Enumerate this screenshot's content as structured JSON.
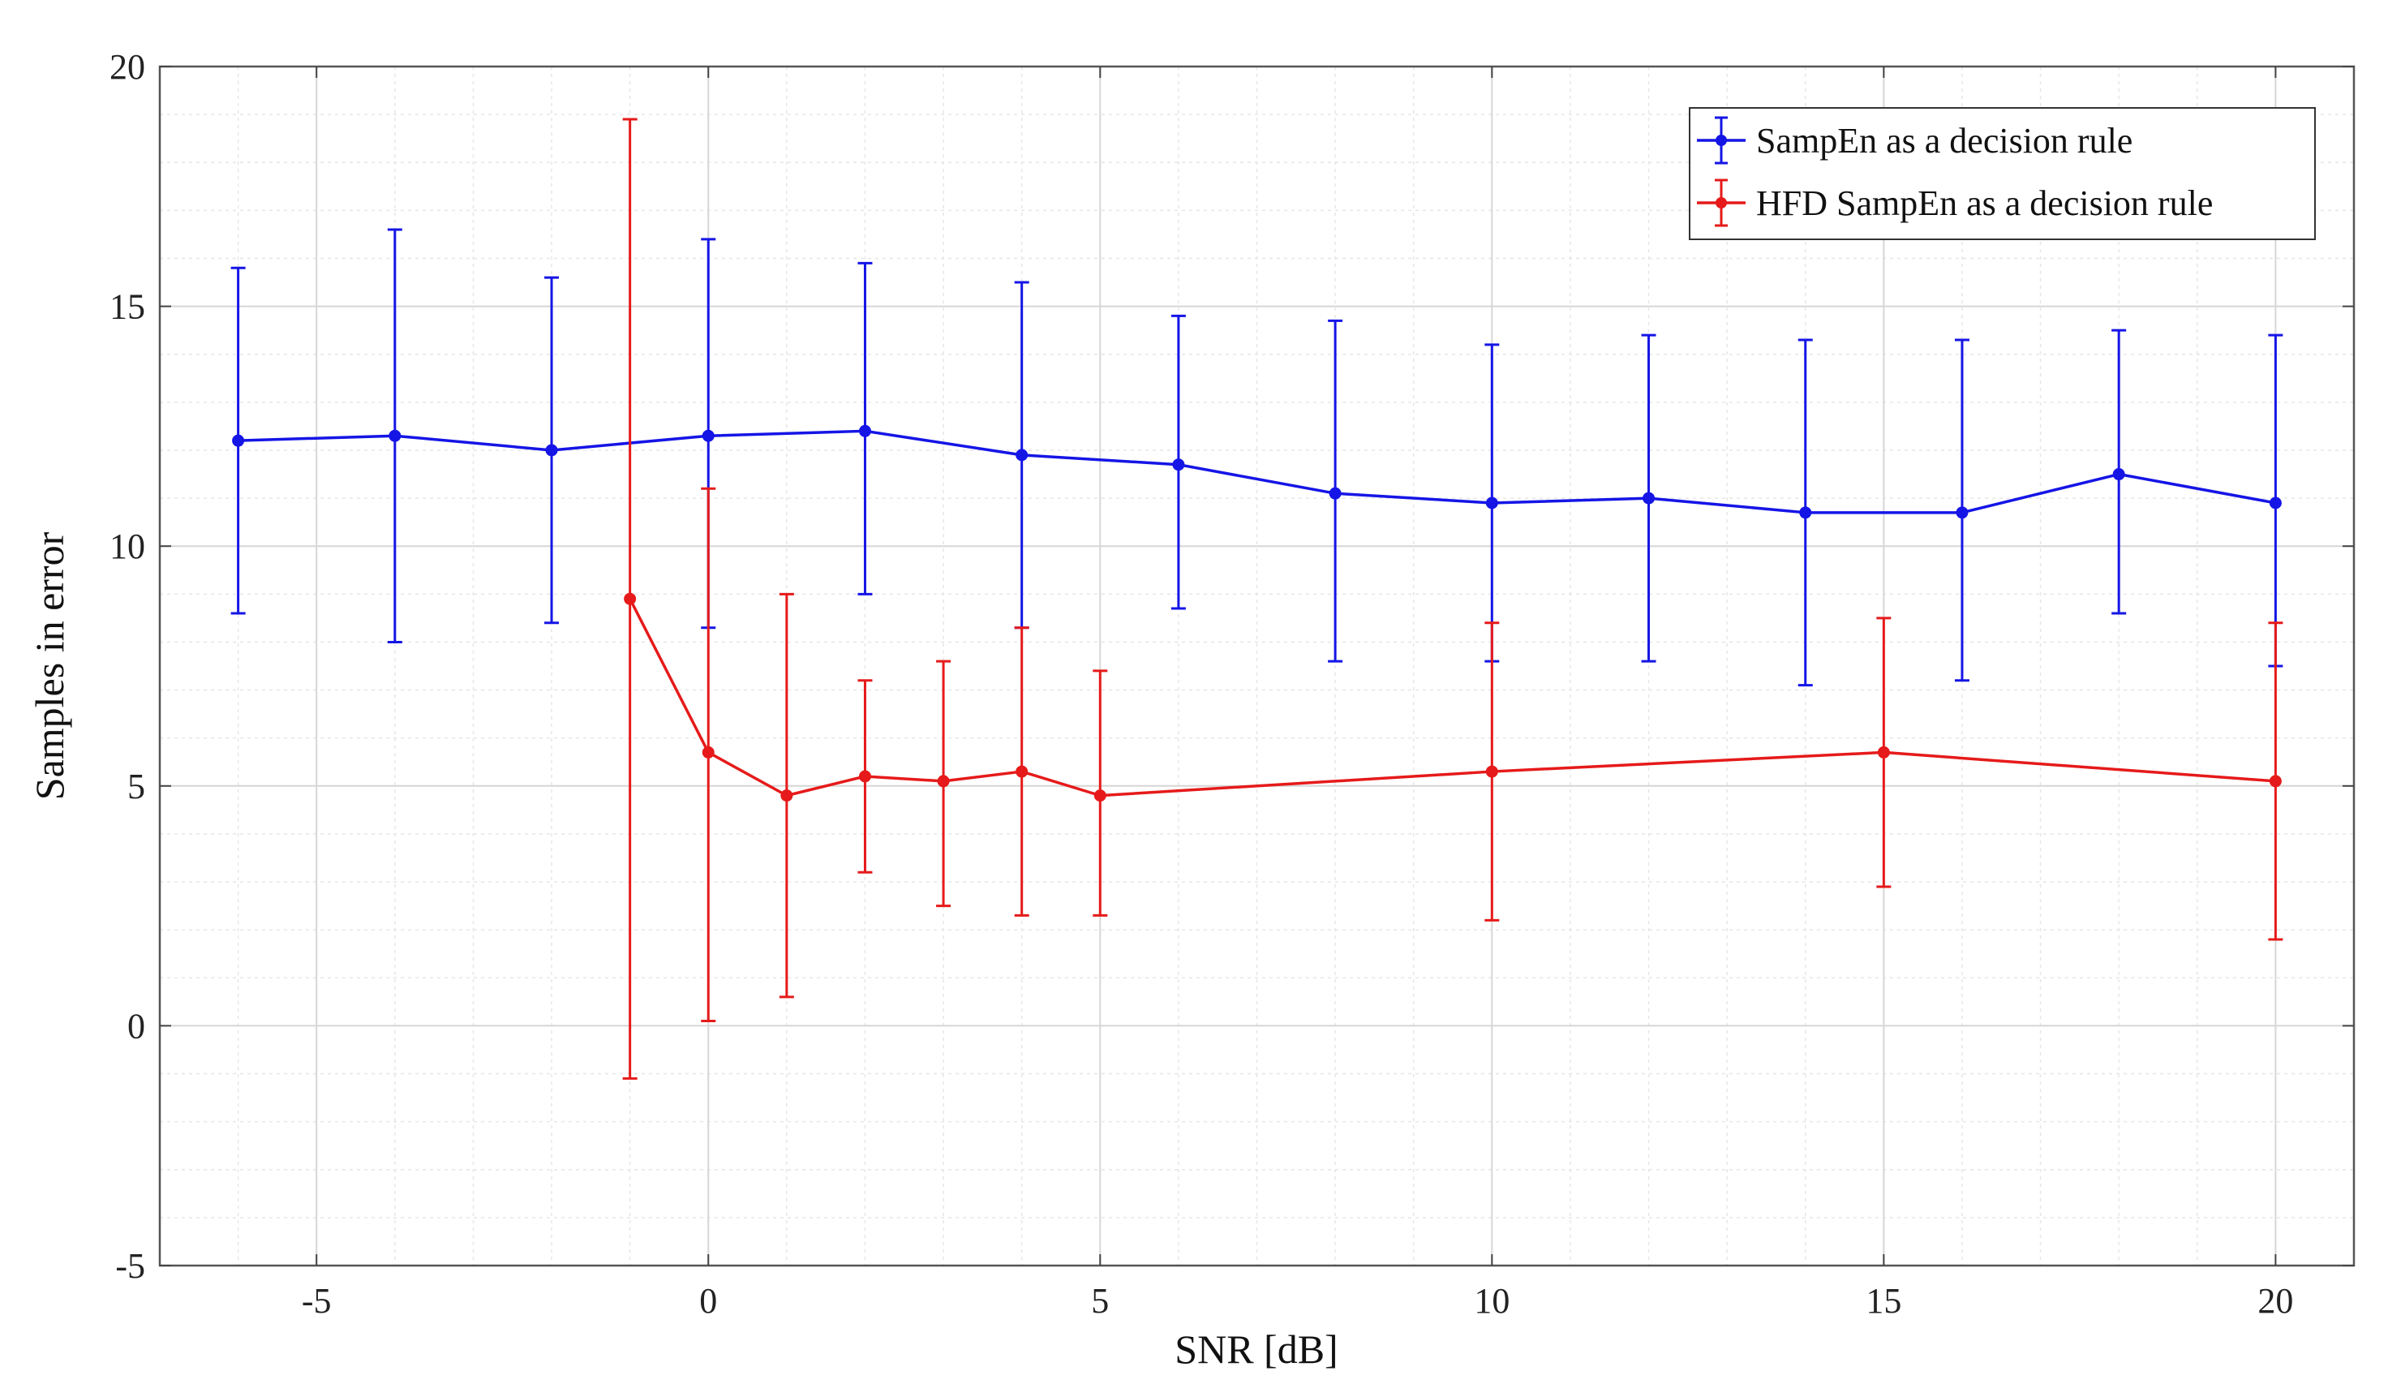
{
  "chart_data": {
    "type": "line",
    "subtype": "errorbar",
    "title": "",
    "xlabel": "SNR [dB]",
    "ylabel": "Samples in error",
    "xlim": [
      -7,
      21
    ],
    "ylim": [
      -5,
      20
    ],
    "xticks": [
      -5,
      0,
      5,
      10,
      15,
      20
    ],
    "xtick_labels": [
      "-5",
      "0",
      "5",
      "10",
      "15",
      "20"
    ],
    "yticks": [
      -5,
      0,
      5,
      10,
      15,
      20
    ],
    "ytick_labels": [
      "-5",
      "0",
      "5",
      "10",
      "15",
      "20"
    ],
    "grid": true,
    "minor_grid": true,
    "legend_position": "top-right",
    "series": [
      {
        "name": "SampEn as a decision rule",
        "color": "#1515e6",
        "x": [
          -6,
          -4,
          -2,
          0,
          2,
          4,
          6,
          8,
          10,
          12,
          14,
          16,
          18,
          20
        ],
        "values": [
          12.2,
          12.3,
          12.0,
          12.3,
          12.4,
          11.9,
          11.7,
          11.1,
          10.9,
          11.0,
          10.7,
          10.7,
          11.5,
          10.9
        ],
        "lower": [
          8.6,
          8.0,
          8.4,
          8.3,
          9.0,
          8.3,
          8.7,
          7.6,
          7.6,
          7.6,
          7.1,
          7.2,
          8.6,
          7.5
        ],
        "upper": [
          15.8,
          16.6,
          15.6,
          16.4,
          15.9,
          15.5,
          14.8,
          14.7,
          14.2,
          14.4,
          14.3,
          14.3,
          14.5,
          14.4
        ]
      },
      {
        "name": "HFD SampEn as a decision rule",
        "color": "#e61a1a",
        "x": [
          -1,
          0,
          1,
          2,
          3,
          4,
          5,
          10,
          15,
          20
        ],
        "values": [
          8.9,
          5.7,
          4.8,
          5.2,
          5.1,
          5.3,
          4.8,
          5.3,
          5.7,
          5.1
        ],
        "lower": [
          -1.1,
          0.1,
          0.6,
          3.2,
          2.5,
          2.3,
          2.3,
          2.2,
          2.9,
          1.8
        ],
        "upper": [
          18.9,
          11.2,
          9.0,
          7.2,
          7.6,
          8.3,
          7.4,
          8.4,
          8.5,
          8.4
        ]
      }
    ]
  }
}
